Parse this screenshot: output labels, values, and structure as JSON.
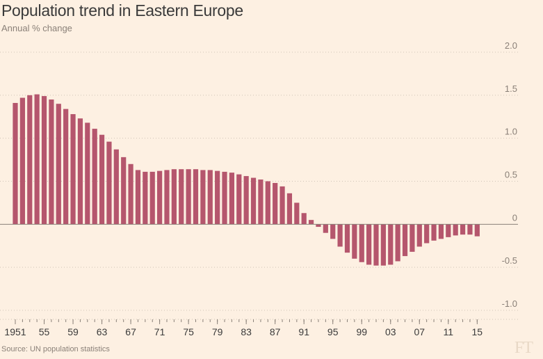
{
  "colors": {
    "background": "#fdf0e2",
    "bar": "#b5566d",
    "grid": "#cfc3b6",
    "zero_line": "#8a8078",
    "text": "#3a3a3a",
    "muted": "#8a8078"
  },
  "logo": "FT",
  "source": "Source: UN population statistics",
  "chart_data": {
    "type": "bar",
    "title": "Population trend in Eastern Europe",
    "subtitle": "Annual % change",
    "xlabel": "",
    "ylabel": "",
    "ylim": [
      -1.0,
      2.0
    ],
    "y_ticks": [
      2.0,
      1.5,
      1.0,
      0.5,
      0,
      -0.5,
      -1.0
    ],
    "y_tick_labels": [
      "2.0",
      "1.5",
      "1.0",
      "0.5",
      "0",
      "-0.5",
      "-1.0"
    ],
    "grid": "horizontal dotted",
    "x_tick_labels": [
      {
        "year": 1951,
        "label": "1951"
      },
      {
        "year": 1955,
        "label": "55"
      },
      {
        "year": 1959,
        "label": "59"
      },
      {
        "year": 1963,
        "label": "63"
      },
      {
        "year": 1967,
        "label": "67"
      },
      {
        "year": 1971,
        "label": "71"
      },
      {
        "year": 1975,
        "label": "75"
      },
      {
        "year": 1979,
        "label": "79"
      },
      {
        "year": 1983,
        "label": "83"
      },
      {
        "year": 1987,
        "label": "87"
      },
      {
        "year": 1991,
        "label": "91"
      },
      {
        "year": 1995,
        "label": "95"
      },
      {
        "year": 1999,
        "label": "99"
      },
      {
        "year": 2003,
        "label": "03"
      },
      {
        "year": 2007,
        "label": "07"
      },
      {
        "year": 2011,
        "label": "11"
      },
      {
        "year": 2015,
        "label": "15"
      }
    ],
    "x": [
      1951,
      1952,
      1953,
      1954,
      1955,
      1956,
      1957,
      1958,
      1959,
      1960,
      1961,
      1962,
      1963,
      1964,
      1965,
      1966,
      1967,
      1968,
      1969,
      1970,
      1971,
      1972,
      1973,
      1974,
      1975,
      1976,
      1977,
      1978,
      1979,
      1980,
      1981,
      1982,
      1983,
      1984,
      1985,
      1986,
      1987,
      1988,
      1989,
      1990,
      1991,
      1992,
      1993,
      1994,
      1995,
      1996,
      1997,
      1998,
      1999,
      2000,
      2001,
      2002,
      2003,
      2004,
      2005,
      2006,
      2007,
      2008,
      2009,
      2010,
      2011,
      2012,
      2013,
      2014,
      2015
    ],
    "values": [
      1.41,
      1.47,
      1.5,
      1.51,
      1.49,
      1.45,
      1.4,
      1.34,
      1.28,
      1.23,
      1.18,
      1.11,
      1.04,
      0.96,
      0.87,
      0.78,
      0.7,
      0.63,
      0.61,
      0.61,
      0.62,
      0.63,
      0.64,
      0.64,
      0.64,
      0.64,
      0.63,
      0.63,
      0.62,
      0.61,
      0.6,
      0.58,
      0.56,
      0.54,
      0.52,
      0.5,
      0.48,
      0.44,
      0.36,
      0.25,
      0.13,
      0.05,
      -0.03,
      -0.1,
      -0.17,
      -0.26,
      -0.33,
      -0.4,
      -0.44,
      -0.47,
      -0.48,
      -0.48,
      -0.47,
      -0.43,
      -0.37,
      -0.32,
      -0.26,
      -0.22,
      -0.19,
      -0.17,
      -0.15,
      -0.13,
      -0.12,
      -0.12,
      -0.14
    ]
  }
}
